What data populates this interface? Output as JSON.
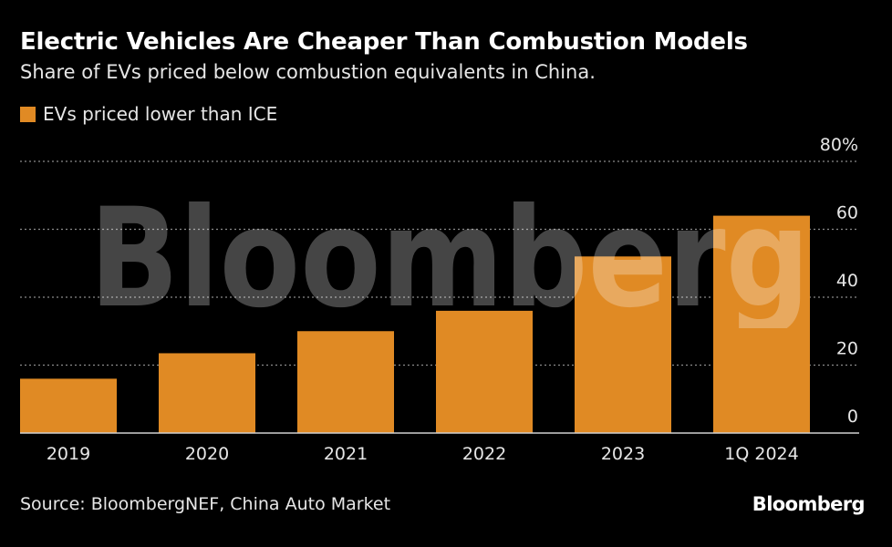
{
  "header": {
    "title": "Electric Vehicles Are Cheaper Than Combustion Models",
    "subtitle": "Share of EVs priced below combustion equivalents in China."
  },
  "legend": {
    "label": "EVs priced lower than ICE",
    "color": "#e08a24"
  },
  "chart_data": {
    "type": "bar",
    "categories": [
      "2019",
      "2020",
      "2021",
      "2022",
      "2023",
      "1Q 2024"
    ],
    "series": [
      {
        "name": "EVs priced lower than ICE",
        "values": [
          16,
          23.5,
          30,
          36,
          52,
          64
        ]
      }
    ],
    "ylim": [
      0,
      80
    ],
    "yticks": [
      0,
      20,
      40,
      60,
      80
    ],
    "ytick_labels": [
      "0",
      "20",
      "40",
      "60",
      "80%"
    ],
    "grid": true,
    "grid_style": "dotted",
    "y_axis_side": "right",
    "bar_color": "#e08a24"
  },
  "footer": {
    "source": "Source: BloombergNEF, China Auto Market",
    "brand": "Bloomberg"
  },
  "watermark": {
    "text": "Bloomberg"
  },
  "colors": {
    "background": "#000000",
    "text": "#ffffff",
    "grid": "#8a8a8a",
    "accent": "#e08a24"
  }
}
